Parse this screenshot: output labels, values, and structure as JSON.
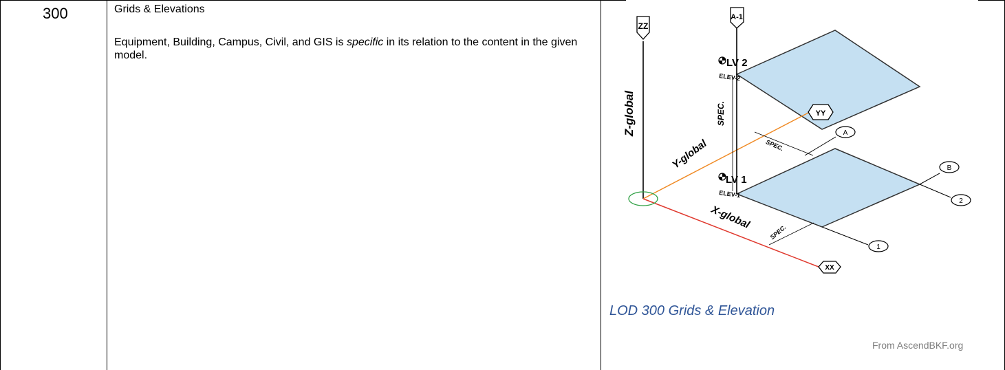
{
  "row": {
    "lod_level": "300",
    "title": "Grids & Elevations",
    "description_before": "Equipment, Building, Campus, Civil, and GIS is ",
    "description_emphasis": "specific",
    "description_after": " in its relation to the content in the given model."
  },
  "figure": {
    "caption": "LOD 300 Grids & Elevation",
    "credit": "From AscendBKF.org",
    "labels": {
      "zz": "ZZ",
      "a1": "A-1",
      "yy": "YY",
      "xx": "XX",
      "a": "A",
      "b": "B",
      "g1": "1",
      "g2": "2",
      "z_global": "Z-global",
      "y_global": "Y-global",
      "x_global": "X-global",
      "lv2": "LV 2",
      "elev2": "ELEV-2",
      "lv1": "LV 1",
      "elev1": "ELEV-1",
      "spec_vertical": "SPEC.",
      "spec_a": "SPEC.",
      "spec_x": "SPEC."
    },
    "colors": {
      "plate_fill": "#c5e0f2",
      "x_axis": "#e03a2f",
      "y_axis": "#f08a24",
      "origin_marker": "#2ea043",
      "caption": "#2f5597",
      "credit": "#7f7f7f"
    }
  }
}
